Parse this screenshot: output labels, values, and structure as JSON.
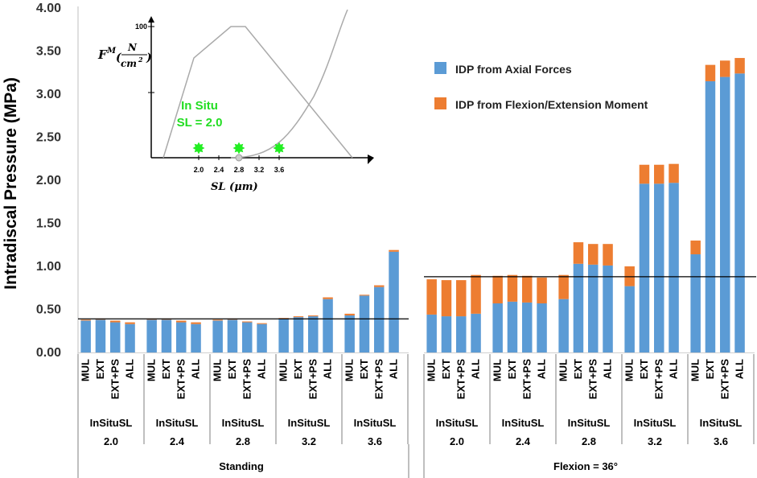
{
  "chart_data": {
    "type": "bar",
    "stacked": true,
    "ylabel": "Intradiscal Pressure (MPa)",
    "ylim": [
      0,
      4
    ],
    "yticks": [
      "0.00",
      "0.50",
      "1.00",
      "1.50",
      "2.00",
      "2.50",
      "3.00",
      "3.50",
      "4.00"
    ],
    "legend": {
      "placement": "top-right",
      "entries": [
        {
          "name": "IDP from Axial Forces",
          "color": "#5b9bd5"
        },
        {
          "name": "IDP from Flexion/Extension Moment",
          "color": "#ed7d31"
        }
      ]
    },
    "group_prefix": "InSituSL",
    "categories": [
      "MUL",
      "EXT",
      "EXT+PS",
      "ALL"
    ],
    "panels": [
      {
        "condition": "Standing",
        "reference_line": 0.39,
        "groups": [
          {
            "label": "2.0",
            "axial": [
              0.37,
              0.38,
              0.35,
              0.33
            ],
            "moment": [
              0.01,
              0.01,
              0.02,
              0.02
            ]
          },
          {
            "label": "2.4",
            "axial": [
              0.38,
              0.38,
              0.35,
              0.33
            ],
            "moment": [
              0.01,
              0.01,
              0.02,
              0.02
            ]
          },
          {
            "label": "2.8",
            "axial": [
              0.37,
              0.38,
              0.35,
              0.33
            ],
            "moment": [
              0.01,
              0.01,
              0.01,
              0.01
            ]
          },
          {
            "label": "3.2",
            "axial": [
              0.39,
              0.41,
              0.42,
              0.62
            ],
            "moment": [
              0.01,
              0.01,
              0.01,
              0.02
            ]
          },
          {
            "label": "3.6",
            "axial": [
              0.43,
              0.66,
              0.76,
              1.17
            ],
            "moment": [
              0.02,
              0.01,
              0.02,
              0.02
            ]
          }
        ]
      },
      {
        "condition": "Flexion = 36°",
        "reference_line": 0.88,
        "groups": [
          {
            "label": "2.0",
            "axial": [
              0.44,
              0.42,
              0.42,
              0.45
            ],
            "moment": [
              0.41,
              0.42,
              0.42,
              0.45
            ]
          },
          {
            "label": "2.4",
            "axial": [
              0.57,
              0.59,
              0.58,
              0.57
            ],
            "moment": [
              0.32,
              0.31,
              0.31,
              0.3
            ]
          },
          {
            "label": "2.8",
            "axial": [
              0.62,
              1.03,
              1.02,
              1.01
            ],
            "moment": [
              0.28,
              0.25,
              0.24,
              0.25
            ]
          },
          {
            "label": "3.2",
            "axial": [
              0.77,
              1.96,
              1.96,
              1.97
            ],
            "moment": [
              0.23,
              0.22,
              0.22,
              0.22
            ]
          },
          {
            "label": "3.6",
            "axial": [
              1.14,
              3.15,
              3.2,
              3.24
            ],
            "moment": [
              0.16,
              0.19,
              0.19,
              0.18
            ]
          }
        ]
      }
    ],
    "inset": {
      "ylabel_prefix": "F",
      "ylabel_superscript": "M",
      "ylabel_unit_num": "N",
      "ylabel_unit_den": "cm",
      "ylabel_unit_den_exp": "2",
      "ytick": "100",
      "xlabel": "SL (μm)",
      "xticks": [
        "2.0",
        "2.4",
        "2.8",
        "3.2",
        "3.6"
      ],
      "annotation_line1": "In Situ",
      "annotation_line2": "SL = 2.0",
      "marker_positions": [
        2.0,
        2.8,
        3.6
      ],
      "marker_color": "#22ee22"
    }
  }
}
